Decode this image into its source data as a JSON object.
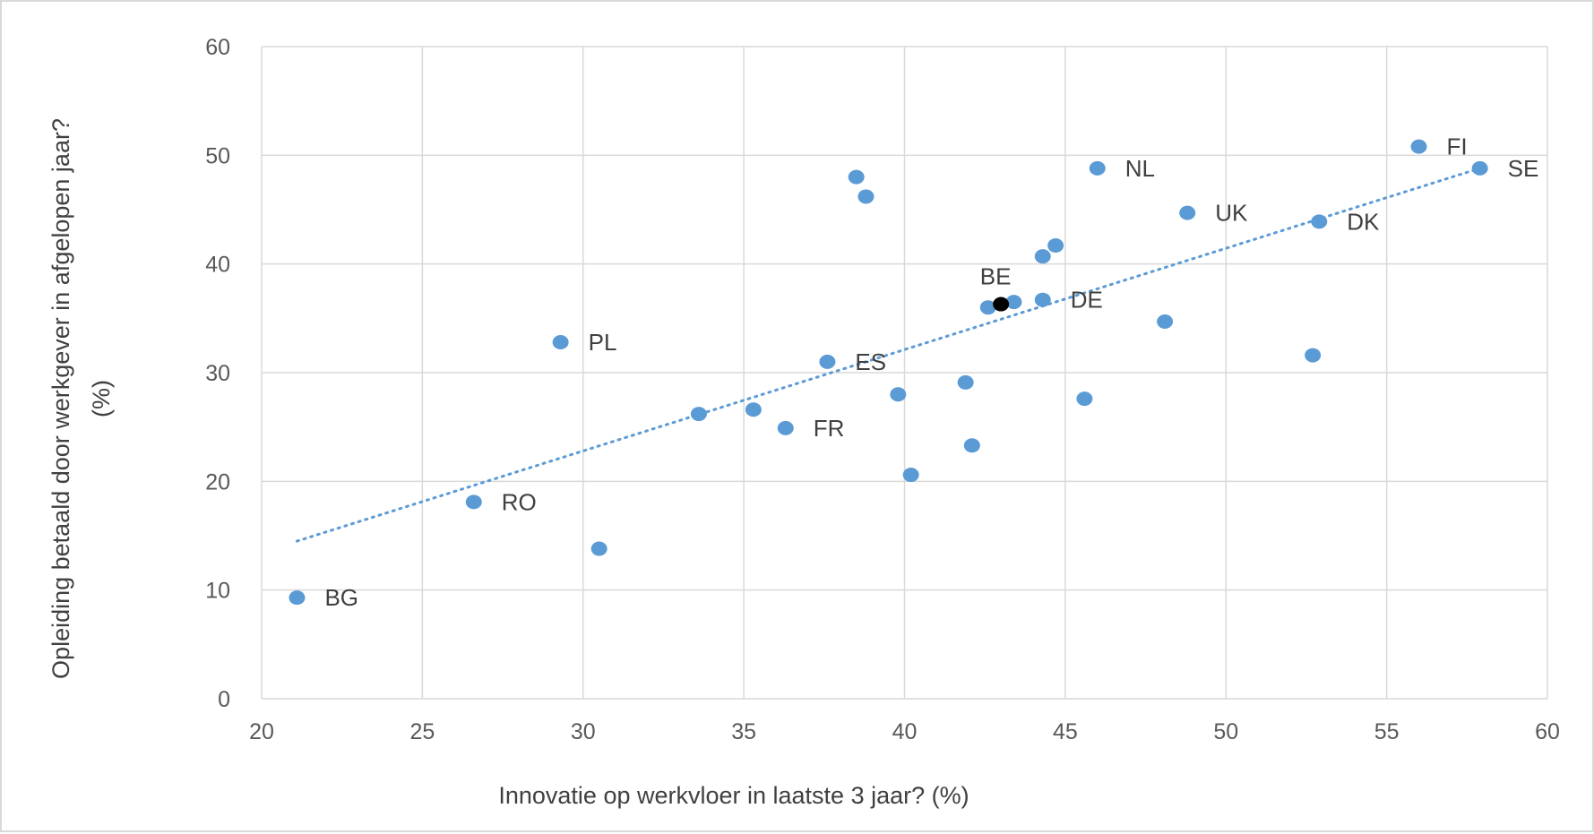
{
  "chart_data": {
    "type": "scatter",
    "title": "",
    "xlabel": "Innovatie op werkvloer in laatste 3 jaar? (%)",
    "ylabel_line1": "Opleiding betaald door werkgever  in afgelopen jaar?",
    "ylabel_line2": "(%)",
    "xlim": [
      20,
      60
    ],
    "ylim": [
      0,
      60
    ],
    "xticks": [
      20,
      25,
      30,
      35,
      40,
      45,
      50,
      55,
      60
    ],
    "yticks": [
      0,
      10,
      20,
      30,
      40,
      50,
      60
    ],
    "grid": true,
    "legend": "none",
    "point_color": "#5b9bd5",
    "highlight_color": "#000000",
    "trendline": {
      "type": "linear",
      "style": "dotted",
      "color": "#5b9bd5",
      "x": [
        21.1,
        58
      ],
      "y": [
        14.5,
        48.9
      ]
    },
    "points": [
      {
        "x": 21.1,
        "y": 9.3,
        "label": "BG"
      },
      {
        "x": 26.6,
        "y": 18.1,
        "label": "RO"
      },
      {
        "x": 29.3,
        "y": 32.8,
        "label": "PL"
      },
      {
        "x": 30.5,
        "y": 13.8,
        "label": ""
      },
      {
        "x": 33.6,
        "y": 26.2,
        "label": ""
      },
      {
        "x": 35.3,
        "y": 26.6,
        "label": ""
      },
      {
        "x": 36.3,
        "y": 24.9,
        "label": "FR"
      },
      {
        "x": 37.6,
        "y": 31.0,
        "label": "ES"
      },
      {
        "x": 38.5,
        "y": 48.0,
        "label": ""
      },
      {
        "x": 38.8,
        "y": 46.2,
        "label": ""
      },
      {
        "x": 39.8,
        "y": 28.0,
        "label": ""
      },
      {
        "x": 40.2,
        "y": 20.6,
        "label": ""
      },
      {
        "x": 41.9,
        "y": 29.1,
        "label": ""
      },
      {
        "x": 42.1,
        "y": 23.3,
        "label": ""
      },
      {
        "x": 42.6,
        "y": 36.0,
        "label": ""
      },
      {
        "x": 43.4,
        "y": 36.5,
        "label": ""
      },
      {
        "x": 44.3,
        "y": 40.7,
        "label": ""
      },
      {
        "x": 44.3,
        "y": 36.7,
        "label": "DE"
      },
      {
        "x": 44.7,
        "y": 41.7,
        "label": ""
      },
      {
        "x": 45.6,
        "y": 27.6,
        "label": ""
      },
      {
        "x": 46.0,
        "y": 48.8,
        "label": "NL"
      },
      {
        "x": 48.1,
        "y": 34.7,
        "label": ""
      },
      {
        "x": 48.8,
        "y": 44.7,
        "label": "UK"
      },
      {
        "x": 52.7,
        "y": 31.6,
        "label": ""
      },
      {
        "x": 52.9,
        "y": 43.9,
        "label": "DK"
      },
      {
        "x": 56.0,
        "y": 50.8,
        "label": "FI"
      },
      {
        "x": 57.9,
        "y": 48.8,
        "label": "SE"
      },
      {
        "x": 43.0,
        "y": 36.3,
        "label": "BE",
        "highlight": true
      }
    ]
  }
}
